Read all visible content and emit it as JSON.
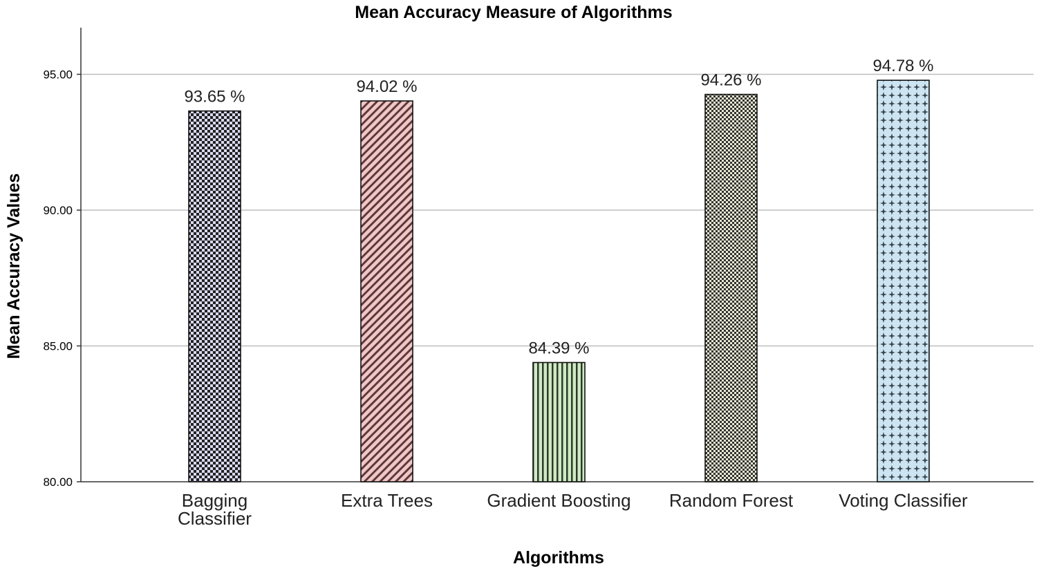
{
  "chart_data": {
    "type": "bar",
    "title": "Mean Accuracy Measure of Algorithms",
    "xlabel": "Algorithms",
    "ylabel": "Mean Accuracy Values",
    "categories": [
      [
        "Bagging",
        "Classifier"
      ],
      [
        "Extra Trees"
      ],
      [
        "Gradient Boosting"
      ],
      [
        "Random Forest"
      ],
      [
        "Voting Classifier"
      ]
    ],
    "values": [
      93.65,
      94.02,
      84.39,
      94.26,
      94.78
    ],
    "data_labels": [
      "93.65 %",
      "94.02 %",
      "84.39 %",
      "94.26 %",
      "94.78 %"
    ],
    "yticks": [
      "80.00",
      "85.00",
      "90.00",
      "95.00"
    ],
    "ylim": [
      80,
      96.7
    ],
    "grid": true,
    "bar_colors": [
      "#d9d9f2",
      "#f2c6c6",
      "#cfeac4",
      "#e9e9d2",
      "#cde5f2"
    ],
    "bar_patterns": [
      "checker",
      "diagonal",
      "vertical",
      "checker-fine",
      "crosshatch"
    ]
  }
}
